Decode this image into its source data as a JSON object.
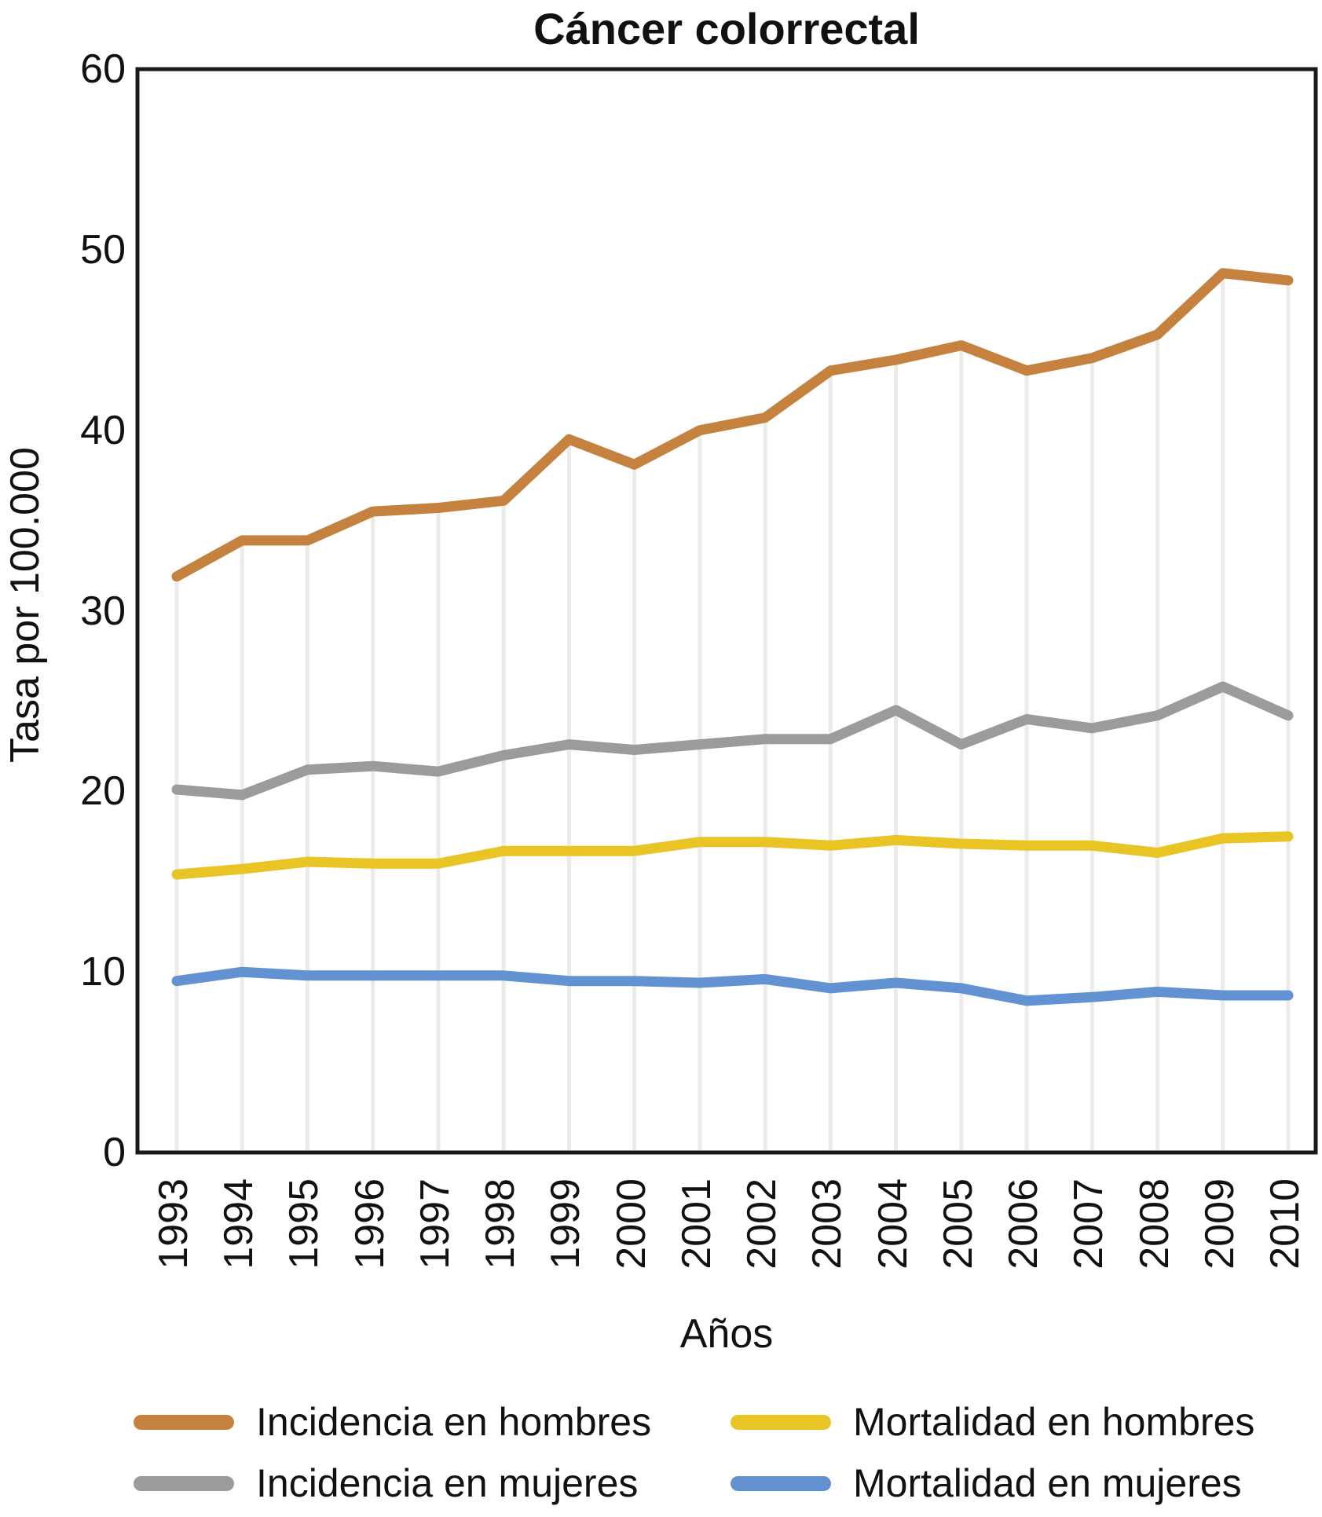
{
  "title": "Cáncer colorrectal",
  "chart_data": {
    "type": "line",
    "title": "Cáncer colorrectal",
    "xlabel": "Años",
    "ylabel": "Tasa por 100.000",
    "ylim": [
      0,
      60
    ],
    "yticks": [
      0,
      10,
      20,
      30,
      40,
      50,
      60
    ],
    "x": [
      1993,
      1994,
      1995,
      1996,
      1997,
      1998,
      1999,
      2000,
      2001,
      2002,
      2003,
      2004,
      2005,
      2006,
      2007,
      2008,
      2009,
      2010
    ],
    "grid": "vertical drop-lines at each year, from x-axis up to the top series",
    "legend_position": "bottom, two columns",
    "series": [
      {
        "name": "Incidencia en hombres",
        "color": "#C5823E",
        "values": [
          31.9,
          33.9,
          33.9,
          35.5,
          35.7,
          36.1,
          39.5,
          38.1,
          40.0,
          40.7,
          43.3,
          43.9,
          44.7,
          43.3,
          44.0,
          45.3,
          48.7,
          48.3
        ]
      },
      {
        "name": "Incidencia en mujeres",
        "color": "#9B9B9B",
        "values": [
          20.1,
          19.8,
          21.2,
          21.4,
          21.1,
          22.0,
          22.6,
          22.3,
          22.6,
          22.9,
          22.9,
          24.5,
          22.6,
          24.0,
          23.5,
          24.2,
          25.8,
          24.2
        ]
      },
      {
        "name": "Mortalidad en hombres",
        "color": "#E8C424",
        "values": [
          15.4,
          15.7,
          16.1,
          16.0,
          16.0,
          16.7,
          16.7,
          16.7,
          17.2,
          17.2,
          17.0,
          17.3,
          17.1,
          17.0,
          17.0,
          16.6,
          17.4,
          17.5
        ]
      },
      {
        "name": "Mortalidad en mujeres",
        "color": "#6292D2",
        "values": [
          9.5,
          10.0,
          9.8,
          9.8,
          9.8,
          9.8,
          9.5,
          9.5,
          9.4,
          9.6,
          9.1,
          9.4,
          9.1,
          8.4,
          8.6,
          8.9,
          8.7,
          8.7
        ]
      }
    ]
  },
  "colors": {
    "axis": "#1A1A1A",
    "gridline": "#EDEBE8",
    "background": "#FFFFFF"
  }
}
